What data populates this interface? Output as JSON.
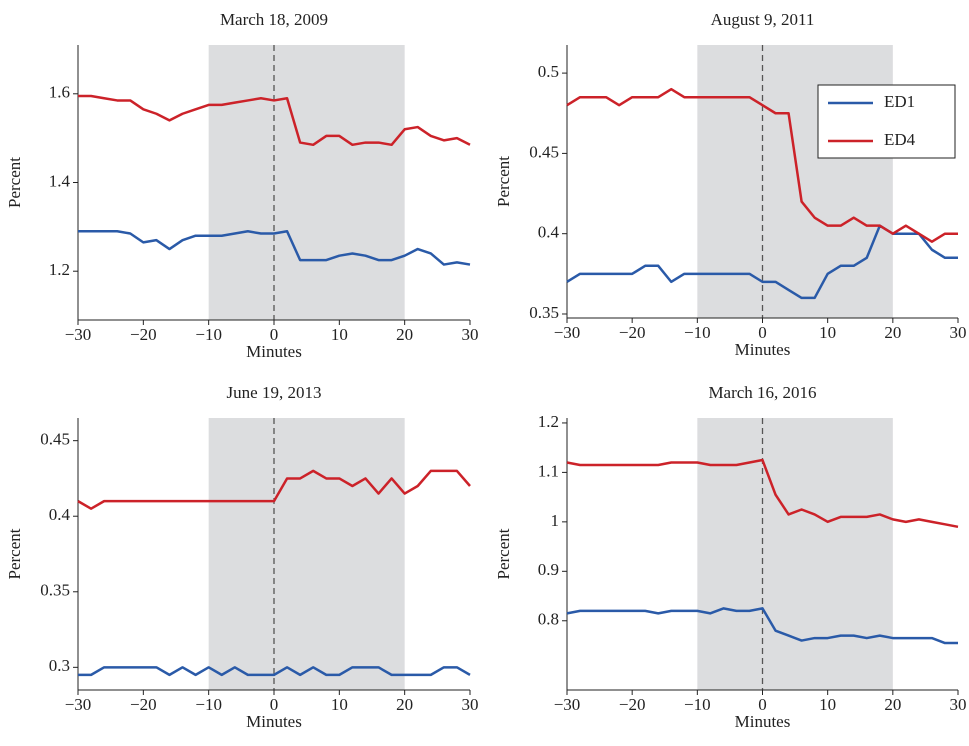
{
  "chart_data": [
    {
      "type": "line",
      "title": "March 18, 2009",
      "xlabel": "Minutes",
      "ylabel": "Percent",
      "x": [
        -30,
        -28,
        -26,
        -24,
        -22,
        -20,
        -18,
        -16,
        -14,
        -12,
        -10,
        -8,
        -6,
        -4,
        -2,
        0,
        2,
        4,
        6,
        8,
        10,
        12,
        14,
        16,
        18,
        20,
        22,
        24,
        26,
        28,
        30
      ],
      "series": [
        {
          "color": "#2a5aa8",
          "values": [
            1.29,
            1.29,
            1.29,
            1.29,
            1.285,
            1.265,
            1.27,
            1.25,
            1.27,
            1.28,
            1.28,
            1.28,
            1.285,
            1.29,
            1.285,
            1.285,
            1.29,
            1.225,
            1.225,
            1.225,
            1.235,
            1.24,
            1.235,
            1.225,
            1.225,
            1.235,
            1.25,
            1.24,
            1.215,
            1.22,
            1.215
          ]
        },
        {
          "color": "#cc2229",
          "values": [
            1.595,
            1.595,
            1.59,
            1.585,
            1.585,
            1.565,
            1.555,
            1.54,
            1.555,
            1.565,
            1.575,
            1.575,
            1.58,
            1.585,
            1.59,
            1.585,
            1.59,
            1.49,
            1.485,
            1.505,
            1.505,
            1.485,
            1.49,
            1.49,
            1.485,
            1.52,
            1.525,
            1.505,
            1.495,
            1.5,
            1.485
          ]
        }
      ],
      "xlim": [
        -30,
        30
      ],
      "xticks": [
        {
          "value": -30,
          "label": "−30"
        },
        {
          "value": -20,
          "label": "−20"
        },
        {
          "value": -10,
          "label": "−10"
        },
        0,
        10,
        20,
        30
      ],
      "ylim": [
        1.09,
        1.71
      ],
      "yticks": [
        1.2,
        1.4,
        1.6
      ],
      "shaded_range": [
        -10,
        20
      ],
      "event_line": 0
    },
    {
      "type": "line",
      "title": "August 9, 2011",
      "xlabel": "Minutes",
      "ylabel": "Percent",
      "x": [
        -30,
        -28,
        -26,
        -24,
        -22,
        -20,
        -18,
        -16,
        -14,
        -12,
        -10,
        -8,
        -6,
        -4,
        -2,
        0,
        2,
        4,
        6,
        8,
        10,
        12,
        14,
        16,
        18,
        20,
        22,
        24,
        26,
        28,
        30
      ],
      "series": [
        {
          "name": "ED1",
          "color": "#2a5aa8",
          "values": [
            0.37,
            0.375,
            0.375,
            0.375,
            0.375,
            0.375,
            0.38,
            0.38,
            0.37,
            0.375,
            0.375,
            0.375,
            0.375,
            0.375,
            0.375,
            0.37,
            0.37,
            0.365,
            0.36,
            0.36,
            0.375,
            0.38,
            0.38,
            0.385,
            0.405,
            0.4,
            0.4,
            0.4,
            0.39,
            0.385,
            0.385
          ]
        },
        {
          "name": "ED4",
          "color": "#cc2229",
          "values": [
            0.48,
            0.485,
            0.485,
            0.485,
            0.48,
            0.485,
            0.485,
            0.485,
            0.49,
            0.485,
            0.485,
            0.485,
            0.485,
            0.485,
            0.485,
            0.48,
            0.475,
            0.475,
            0.42,
            0.41,
            0.405,
            0.405,
            0.41,
            0.405,
            0.405,
            0.4,
            0.405,
            0.4,
            0.395,
            0.4,
            0.4
          ]
        }
      ],
      "xlim": [
        -30,
        30
      ],
      "xticks": [
        {
          "value": -30,
          "label": "−30"
        },
        {
          "value": -20,
          "label": "−20"
        },
        {
          "value": -10,
          "label": "−10"
        },
        0,
        10,
        20,
        30
      ],
      "ylim": [
        0.3475,
        0.5175
      ],
      "yticks": [
        0.35,
        0.4,
        0.45,
        0.5
      ],
      "shaded_range": [
        -10,
        20
      ],
      "event_line": 0,
      "legend": "upper right"
    },
    {
      "type": "line",
      "title": "June 19, 2013",
      "xlabel": "Minutes",
      "ylabel": "Percent",
      "x": [
        -30,
        -28,
        -26,
        -24,
        -22,
        -20,
        -18,
        -16,
        -14,
        -12,
        -10,
        -8,
        -6,
        -4,
        -2,
        0,
        2,
        4,
        6,
        8,
        10,
        12,
        14,
        16,
        18,
        20,
        22,
        24,
        26,
        28,
        30
      ],
      "series": [
        {
          "color": "#2a5aa8",
          "values": [
            0.295,
            0.295,
            0.3,
            0.3,
            0.3,
            0.3,
            0.3,
            0.295,
            0.3,
            0.295,
            0.3,
            0.295,
            0.3,
            0.295,
            0.295,
            0.295,
            0.3,
            0.295,
            0.3,
            0.295,
            0.295,
            0.3,
            0.3,
            0.3,
            0.295,
            0.295,
            0.295,
            0.295,
            0.3,
            0.3,
            0.295
          ]
        },
        {
          "color": "#cc2229",
          "values": [
            0.41,
            0.405,
            0.41,
            0.41,
            0.41,
            0.41,
            0.41,
            0.41,
            0.41,
            0.41,
            0.41,
            0.41,
            0.41,
            0.41,
            0.41,
            0.41,
            0.425,
            0.425,
            0.43,
            0.425,
            0.425,
            0.42,
            0.425,
            0.415,
            0.425,
            0.415,
            0.42,
            0.43,
            0.43,
            0.43,
            0.42
          ]
        }
      ],
      "xlim": [
        -30,
        30
      ],
      "xticks": [
        {
          "value": -30,
          "label": "−30"
        },
        {
          "value": -20,
          "label": "−20"
        },
        {
          "value": -10,
          "label": "−10"
        },
        0,
        10,
        20,
        30
      ],
      "ylim": [
        0.285,
        0.465
      ],
      "yticks": [
        0.3,
        0.35,
        0.4,
        0.45
      ],
      "shaded_range": [
        -10,
        20
      ],
      "event_line": 0
    },
    {
      "type": "line",
      "title": "March 16, 2016",
      "xlabel": "Minutes",
      "ylabel": "Percent",
      "x": [
        -30,
        -28,
        -26,
        -24,
        -22,
        -20,
        -18,
        -16,
        -14,
        -12,
        -10,
        -8,
        -6,
        -4,
        -2,
        0,
        2,
        4,
        6,
        8,
        10,
        12,
        14,
        16,
        18,
        20,
        22,
        24,
        26,
        28,
        30
      ],
      "series": [
        {
          "color": "#2a5aa8",
          "values": [
            0.815,
            0.82,
            0.82,
            0.82,
            0.82,
            0.82,
            0.82,
            0.815,
            0.82,
            0.82,
            0.82,
            0.815,
            0.825,
            0.82,
            0.82,
            0.825,
            0.78,
            0.77,
            0.76,
            0.765,
            0.765,
            0.77,
            0.77,
            0.765,
            0.77,
            0.765,
            0.765,
            0.765,
            0.765,
            0.755,
            0.755
          ]
        },
        {
          "color": "#cc2229",
          "values": [
            1.12,
            1.115,
            1.115,
            1.115,
            1.115,
            1.115,
            1.115,
            1.115,
            1.12,
            1.12,
            1.12,
            1.115,
            1.115,
            1.115,
            1.12,
            1.125,
            1.055,
            1.015,
            1.025,
            1.015,
            1.0,
            1.01,
            1.01,
            1.01,
            1.015,
            1.005,
            1.0,
            1.005,
            1.0,
            0.995,
            0.99
          ]
        }
      ],
      "xlim": [
        -30,
        30
      ],
      "xticks": [
        {
          "value": -30,
          "label": "−30"
        },
        {
          "value": -20,
          "label": "−20"
        },
        {
          "value": -10,
          "label": "−10"
        },
        0,
        10,
        20,
        30
      ],
      "ylim": [
        0.66,
        1.21
      ],
      "yticks": [
        0.8,
        0.9,
        1,
        1.1,
        1.2
      ],
      "shaded_range": [
        -10,
        20
      ],
      "event_line": 0
    }
  ]
}
